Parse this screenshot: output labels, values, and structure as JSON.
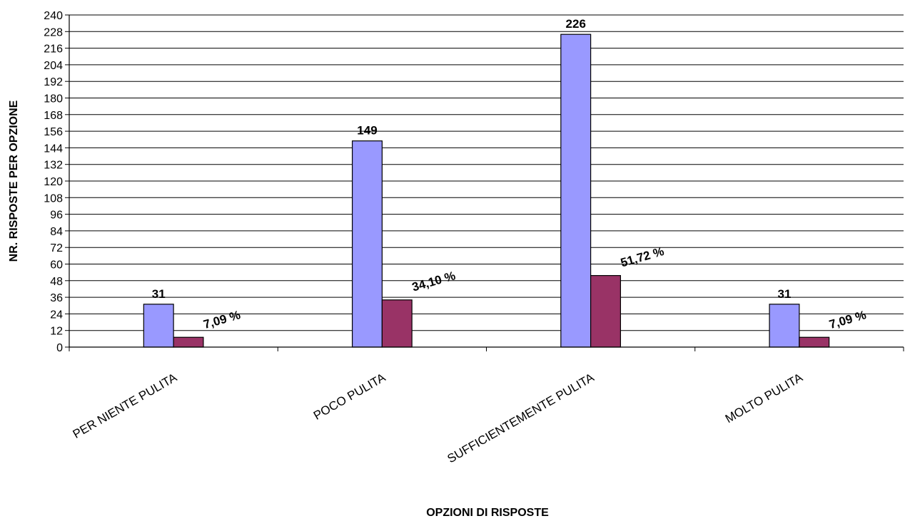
{
  "chart_data": {
    "type": "bar",
    "title": "",
    "xlabel": "OPZIONI DI RISPOSTE",
    "ylabel": "NR. RISPOSTE PER OPZIONE",
    "ylim": [
      0,
      240
    ],
    "ytick_step": 12,
    "grid": true,
    "legend": "none",
    "categories": [
      "PER NIENTE PULITA",
      "POCO PULITA",
      "SUFFICIENTEMENTE PULITA",
      "MOLTO PULITA"
    ],
    "series": [
      {
        "values": [
          31,
          149,
          226,
          31
        ],
        "labels": [
          "31",
          "149",
          "226",
          "31"
        ],
        "color": "#9999FF"
      },
      {
        "values": [
          7.09,
          34.1,
          51.72,
          7.09
        ],
        "labels": [
          "7,09 %",
          "34,10 %",
          "51,72 %",
          "7,09 %"
        ],
        "color": "#993366"
      }
    ]
  }
}
